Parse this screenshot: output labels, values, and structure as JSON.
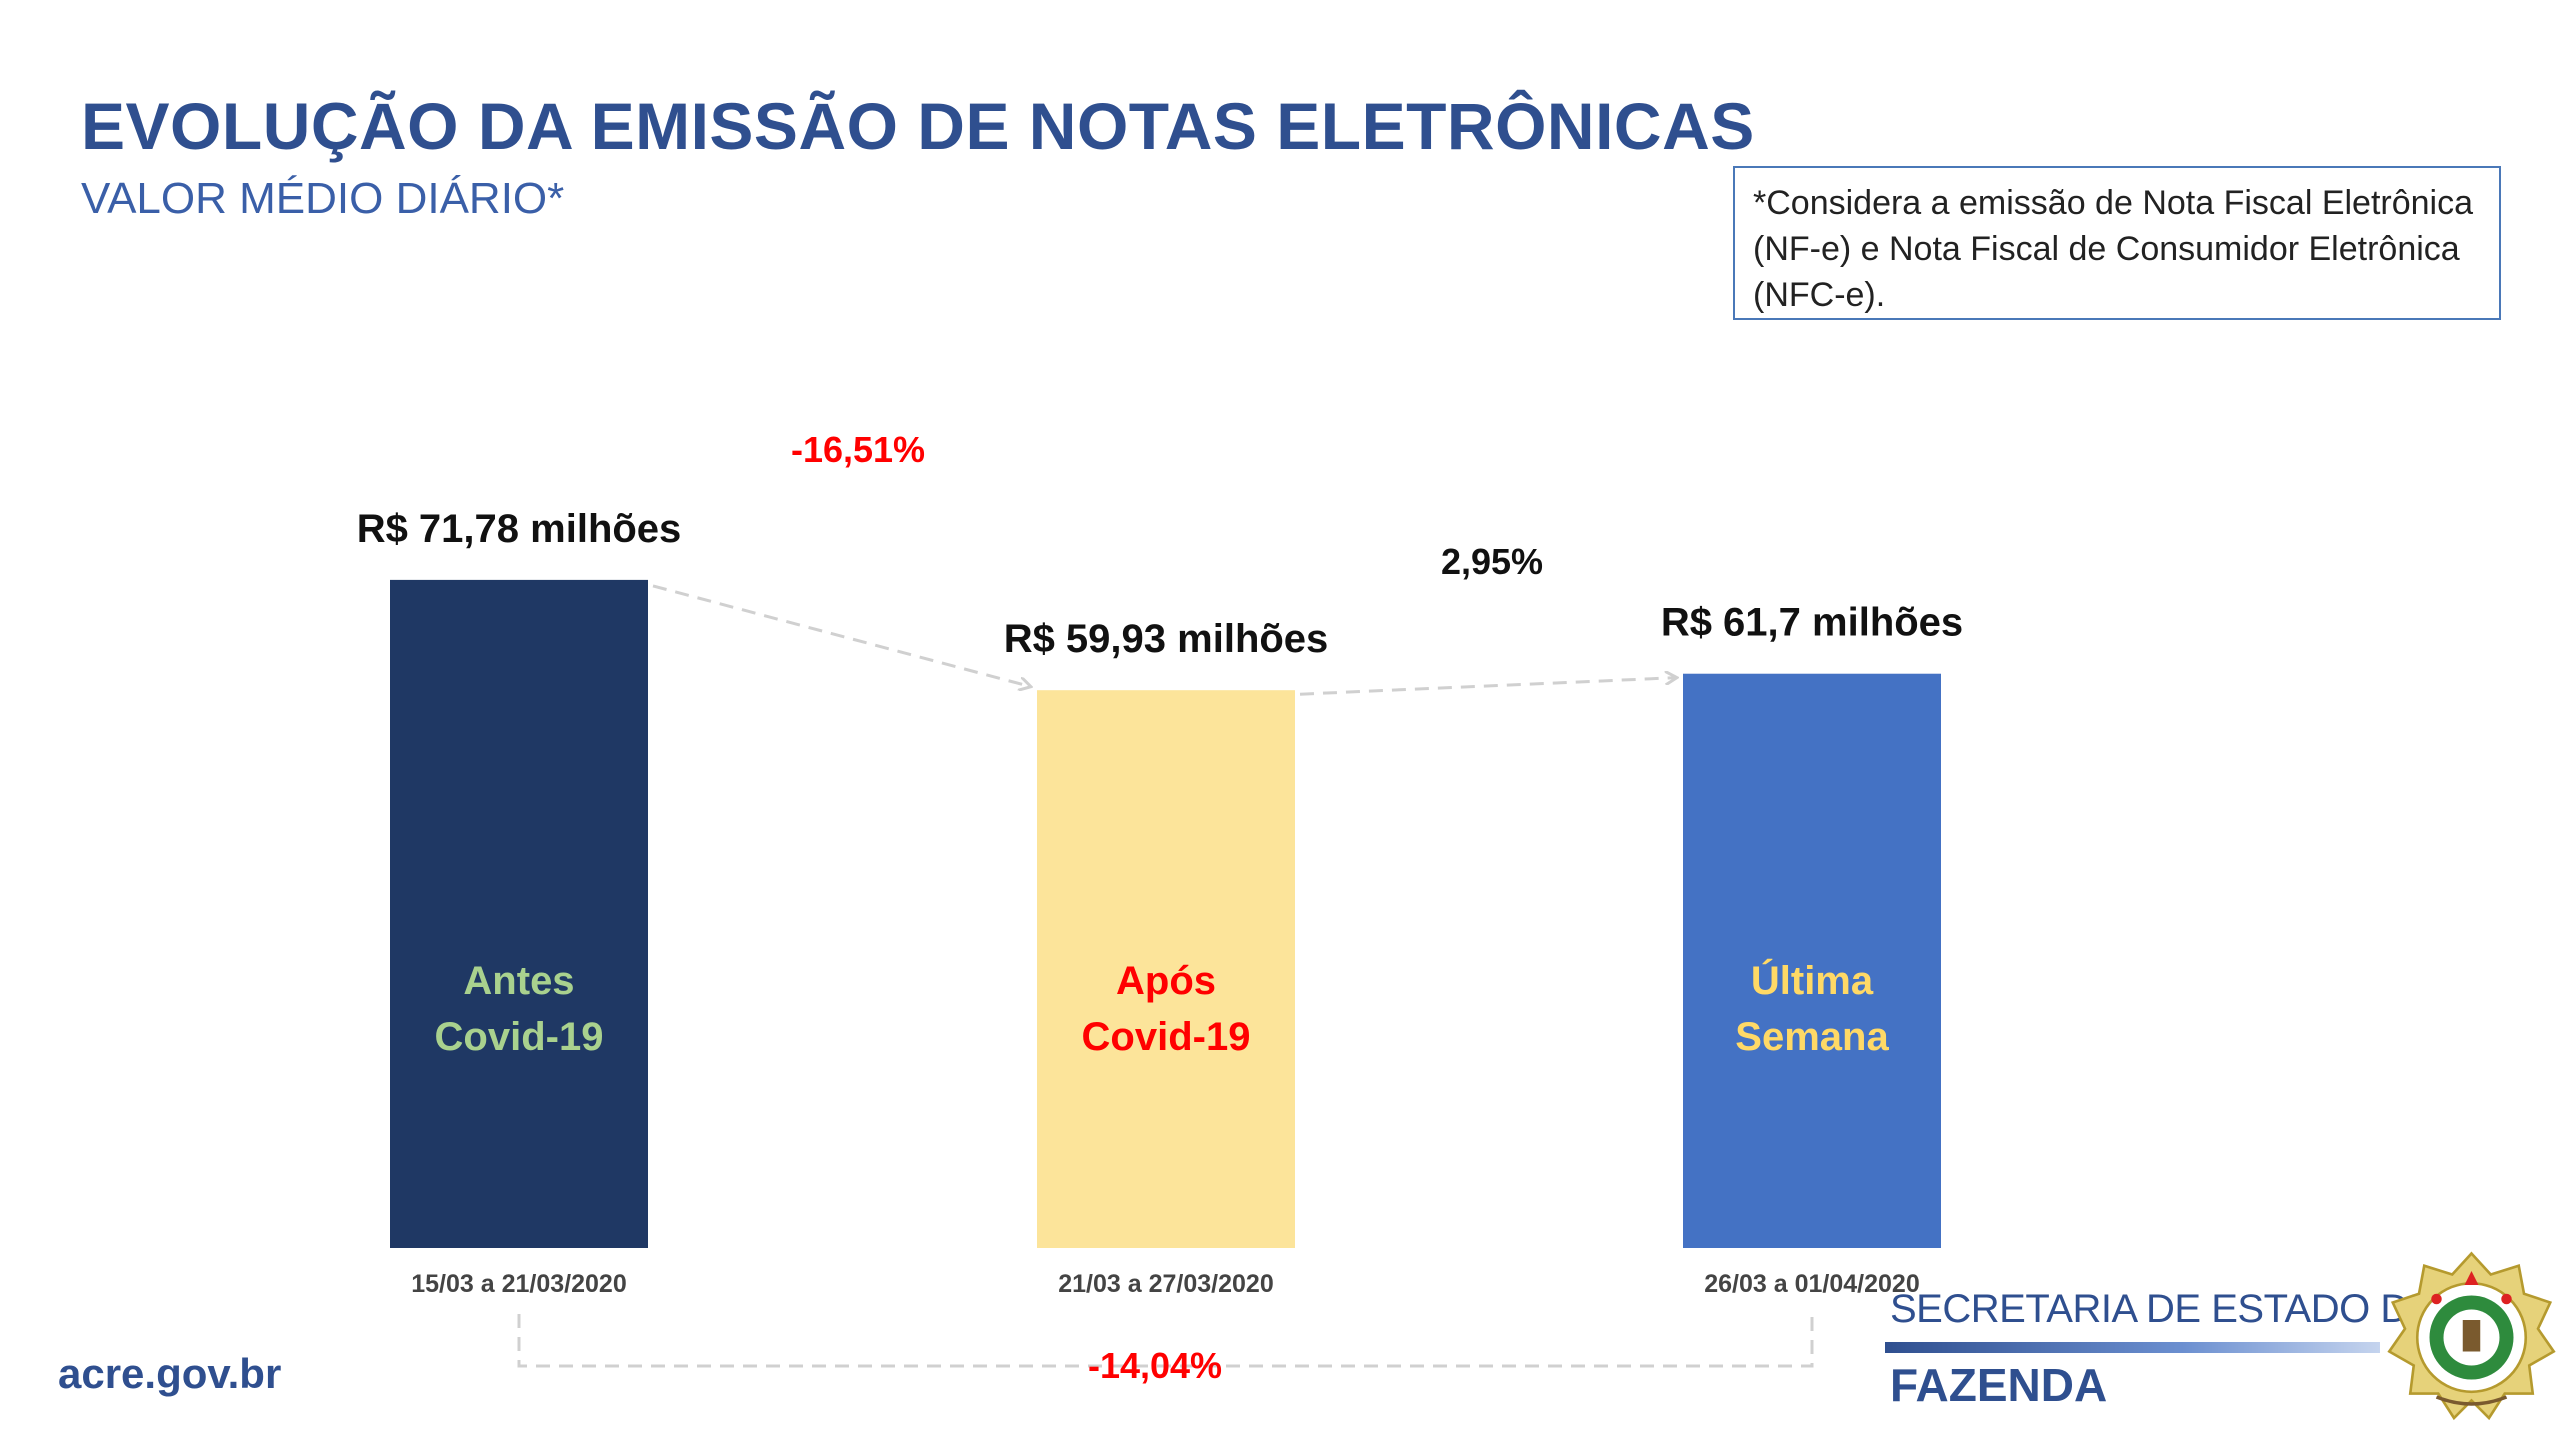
{
  "header": {
    "title": "EVOLUÇÃO DA EMISSÃO DE NOTAS ELETRÔNICAS",
    "subtitle": "VALOR MÉDIO DIÁRIO*"
  },
  "note": "*Considera a emissão de Nota Fiscal Eletrônica (NF-e) e Nota Fiscal de Consumidor Eletrônica (NFC-e).",
  "chart_data": {
    "type": "bar",
    "categories": [
      "15/03 a 21/03/2020",
      "21/03 a 27/03/2020",
      "26/03 a 01/04/2020"
    ],
    "values": [
      71.78,
      59.93,
      61.7
    ],
    "value_labels": [
      "R$ 71,78 milhões",
      "R$ 59,93 milhões",
      "R$ 61,7 milhões"
    ],
    "bar_labels": [
      [
        "Antes",
        "Covid-19"
      ],
      [
        "Após",
        "Covid-19"
      ],
      [
        "Última",
        "Semana"
      ]
    ],
    "bar_colors": [
      "#1f3864",
      "#fce49a",
      "#4472c4"
    ],
    "bar_label_colors": [
      "#a9d18e",
      "#ff0000",
      "#ffd966"
    ],
    "changes": [
      {
        "from": 0,
        "to": 1,
        "label": "-16,51%",
        "color": "#ff0000"
      },
      {
        "from": 1,
        "to": 2,
        "label": "2,95%",
        "color": "#111111"
      },
      {
        "from": 0,
        "to": 2,
        "label": "-14,04%",
        "color": "#ff0000"
      }
    ],
    "ylim": [
      0,
      78
    ],
    "grid": false,
    "legend": "none"
  },
  "footer": {
    "url": "acre.gov.br",
    "org_line1": "SECRETARIA DE ESTADO DE",
    "org_line2": "FAZENDA"
  }
}
